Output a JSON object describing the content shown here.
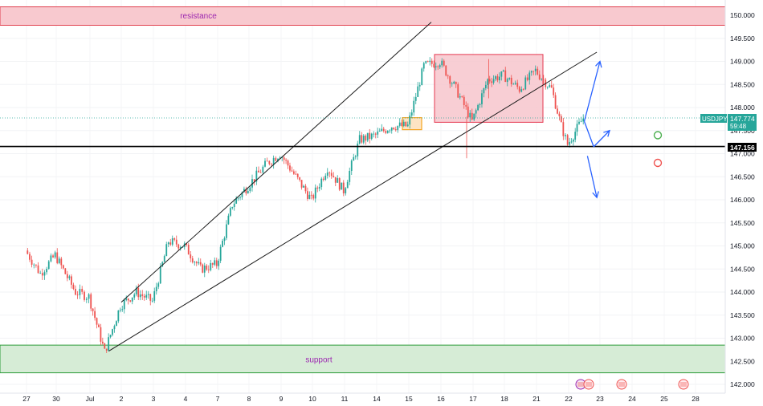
{
  "symbol": "USDJPY",
  "last_price": "147.774",
  "countdown": "59:48",
  "hline_label": "147.156",
  "colors": {
    "up": "#26a69a",
    "down": "#ef5350",
    "resistance_fill": "#f8c9cf",
    "resistance_border": "#e0404f",
    "support_fill": "#d6ecd6",
    "support_border": "#2e9c3a",
    "zone_label": "#9c27b0",
    "box_fill": "#f7c5cc",
    "box_border": "#e53950",
    "orange_box": "#f5a623",
    "arrow": "#2962ff",
    "circle_green": "#4caf50",
    "circle_red": "#ef5350"
  },
  "chart_data": {
    "type": "candlestick",
    "symbol": "USDJPY",
    "y_ticks": [
      "150.000",
      "149.500",
      "149.000",
      "148.500",
      "148.000",
      "147.500",
      "147.000",
      "146.500",
      "146.000",
      "145.500",
      "145.000",
      "144.500",
      "144.000",
      "143.500",
      "143.000",
      "142.500",
      "142.000"
    ],
    "ylim": [
      141.95,
      150.2
    ],
    "x_ticks": [
      "27",
      "30",
      "Jul",
      "2",
      "3",
      "4",
      "7",
      "8",
      "9",
      "10",
      "11",
      "14",
      "15",
      "16",
      "17",
      "18",
      "21",
      "22",
      "23",
      "24",
      "25",
      "28"
    ],
    "resistance": {
      "label": "resistance",
      "low": 149.8,
      "high": 150.2
    },
    "support": {
      "label": "support",
      "low": 142.25,
      "high": 142.85
    },
    "horizontal_line": 147.156,
    "candle_path": [
      {
        "d": "27",
        "p": 144.9
      },
      {
        "d": "27.5",
        "p": 144.4
      },
      {
        "d": "30",
        "p": 144.8
      },
      {
        "d": "30.6",
        "p": 144.0
      },
      {
        "d": "Jul",
        "p": 143.9
      },
      {
        "d": "Jul.5",
        "p": 142.7
      },
      {
        "d": "2",
        "p": 143.7
      },
      {
        "d": "2.5",
        "p": 144.0
      },
      {
        "d": "3",
        "p": 143.8
      },
      {
        "d": "3.5",
        "p": 145.1
      },
      {
        "d": "4",
        "p": 145.0
      },
      {
        "d": "4.5",
        "p": 144.5
      },
      {
        "d": "7",
        "p": 144.6
      },
      {
        "d": "7.5",
        "p": 145.9
      },
      {
        "d": "8",
        "p": 146.3
      },
      {
        "d": "8.6",
        "p": 146.8
      },
      {
        "d": "9",
        "p": 147.0
      },
      {
        "d": "9.5",
        "p": 146.5
      },
      {
        "d": "10",
        "p": 146.0
      },
      {
        "d": "10.5",
        "p": 146.7
      },
      {
        "d": "11",
        "p": 146.2
      },
      {
        "d": "11.5",
        "p": 147.3
      },
      {
        "d": "14",
        "p": 147.4
      },
      {
        "d": "14.5",
        "p": 147.6
      },
      {
        "d": "15",
        "p": 147.6
      },
      {
        "d": "15.5",
        "p": 148.9
      },
      {
        "d": "16",
        "p": 149.0
      },
      {
        "d": "16.5",
        "p": 148.4
      },
      {
        "d": "17",
        "p": 147.7
      },
      {
        "d": "17.5",
        "p": 148.6
      },
      {
        "d": "18",
        "p": 148.7
      },
      {
        "d": "18.5",
        "p": 148.4
      },
      {
        "d": "21",
        "p": 148.8
      },
      {
        "d": "21.5",
        "p": 148.4
      },
      {
        "d": "21.8",
        "p": 147.6
      },
      {
        "d": "22",
        "p": 147.2
      },
      {
        "d": "22.3",
        "p": 147.55
      },
      {
        "d": "22.5",
        "p": 147.77
      }
    ],
    "consolidation_box": {
      "x0": "15.8",
      "x1": "21.2",
      "low": 147.68,
      "high": 149.15
    },
    "small_box": {
      "x0": "14.8",
      "x1": "15.4",
      "low": 147.52,
      "high": 147.78
    },
    "trendlines": [
      {
        "x0": "Jul.6",
        "y0": 142.72,
        "x1": "22.9",
        "y1": 149.2
      },
      {
        "x0": "2",
        "y0": 143.78,
        "x1": "15.7",
        "y1": 149.85
      }
    ],
    "scenario_arrows": [
      {
        "from": [
          "22.5",
          147.7
        ],
        "to": [
          "23",
          149.0
        ]
      },
      {
        "from": [
          "22.5",
          147.7
        ],
        "to": [
          "22.8",
          147.15
        ],
        "then": [
          "23.3",
          147.5
        ]
      },
      {
        "from": [
          "22.6",
          146.95
        ],
        "to": [
          "22.9",
          146.05
        ]
      }
    ],
    "markers": [
      {
        "type": "circle",
        "color": "green",
        "x": "24.8",
        "p": 147.4
      },
      {
        "type": "circle",
        "color": "red",
        "x": "24.8",
        "p": 146.8
      }
    ]
  }
}
